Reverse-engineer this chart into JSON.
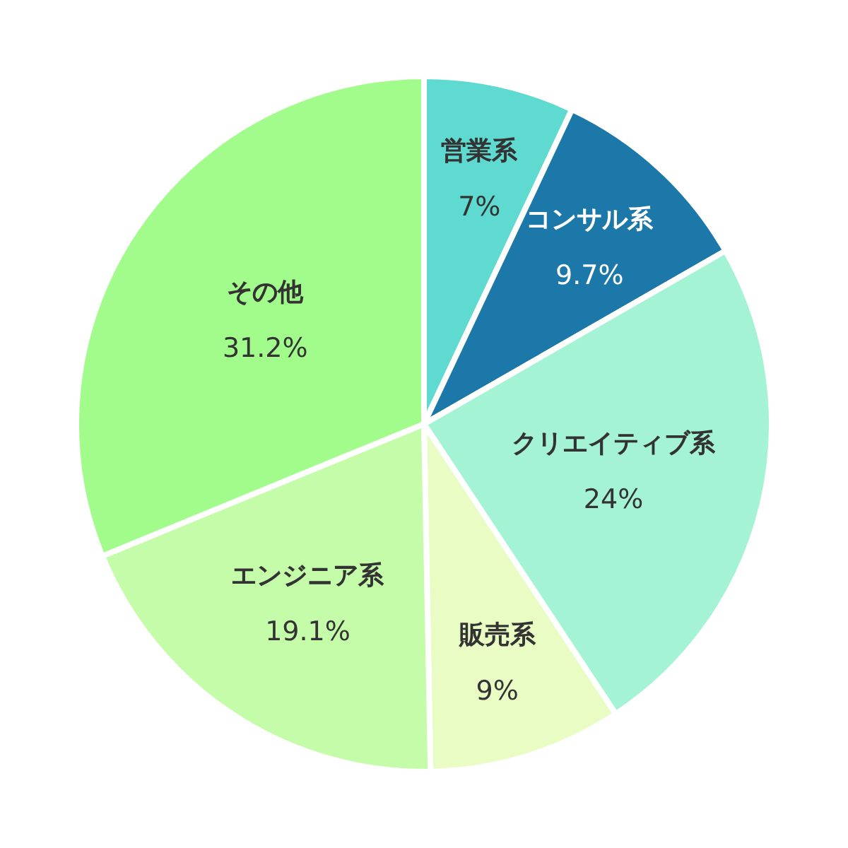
{
  "chart_data": {
    "type": "pie",
    "categories": [
      "営業系",
      "コンサル系",
      "クリエイティブ系",
      "販売系",
      "エンジニア系",
      "その他"
    ],
    "values": [
      7,
      9.7,
      24,
      9,
      19.1,
      31.2
    ],
    "colors": [
      "#5fdad0",
      "#1c78a8",
      "#a3f3d4",
      "#e8fcc4",
      "#c5fcaa",
      "#a2fc8c"
    ],
    "value_labels": [
      "7%",
      "9.7%",
      "24%",
      "9%",
      "19.1%",
      "31.2%"
    ]
  }
}
